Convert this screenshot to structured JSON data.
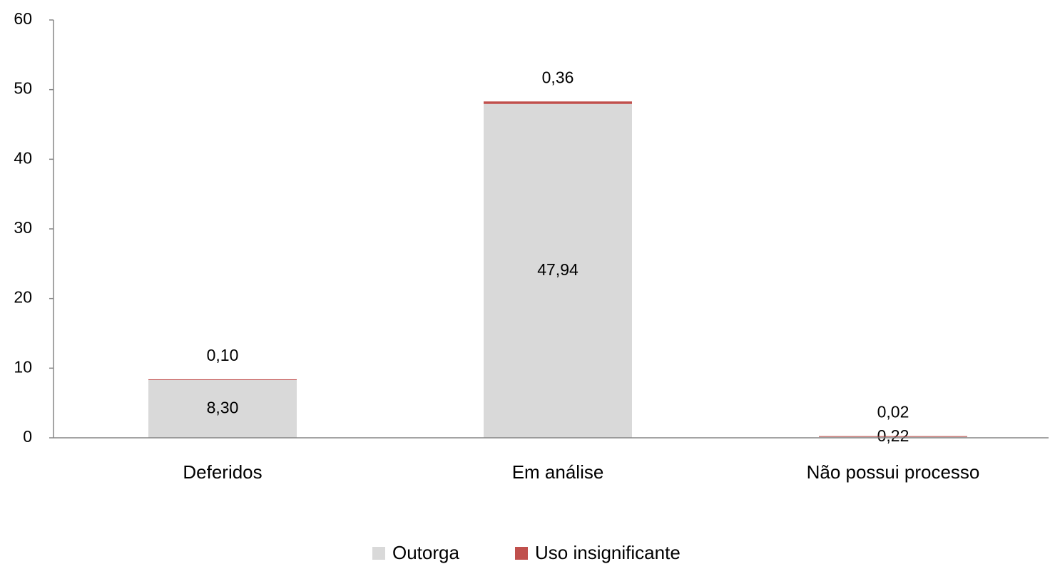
{
  "chart_data": {
    "type": "stacked_bar",
    "categories": [
      "Deferidos",
      "Em análise",
      "Não possui processo"
    ],
    "series": [
      {
        "name": "Outorga",
        "color": "#d9d9d9",
        "values": [
          8.3,
          47.94,
          0.22
        ],
        "value_labels": [
          "8,30",
          "47,94",
          "0,22"
        ]
      },
      {
        "name": "Uso insignificante",
        "color": "#c0504d",
        "values": [
          0.1,
          0.36,
          0.02
        ],
        "value_labels": [
          "0,10",
          "0,36",
          "0,02"
        ]
      }
    ],
    "ylim": [
      0,
      60
    ],
    "yticks": [
      0,
      10,
      20,
      30,
      40,
      50,
      60
    ],
    "grid": false,
    "legend": "bottom"
  }
}
